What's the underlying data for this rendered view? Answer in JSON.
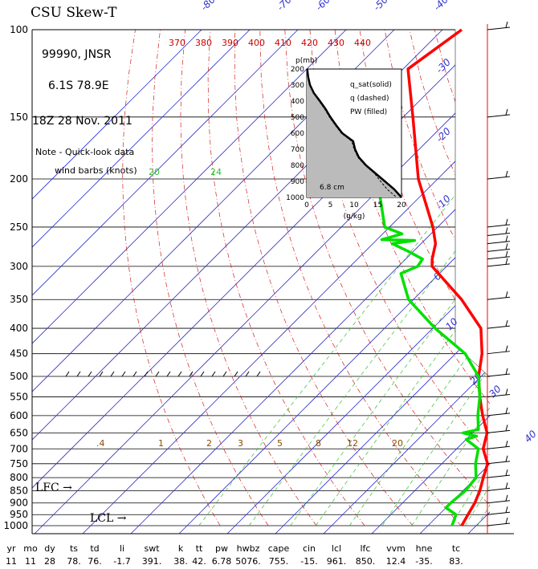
{
  "header": {
    "title": "CSU Skew-T",
    "station": "99990, JNSR",
    "location": "6.1S  78.9E",
    "datetime": "18Z 28 Nov. 2011",
    "note_line1": "Note - Quick-look data",
    "note_line2": "wind barbs (knots)"
  },
  "markers": {
    "lfc": "LFC →",
    "lcl": "LCL →"
  },
  "colors": {
    "temperature": "#ff0000",
    "dewpoint": "#00e000",
    "isotherm": "#3030d0",
    "dry_adiabat": "#d02020",
    "mixing_ratio": "#30c030",
    "inset_fill": "#bbbbbb"
  },
  "chart_data": {
    "type": "line",
    "title": "CSU Skew-T",
    "y_axis_ticks": [
      100,
      150,
      200,
      250,
      300,
      350,
      400,
      450,
      500,
      550,
      600,
      650,
      700,
      750,
      800,
      850,
      900,
      950,
      1000
    ],
    "isotherm_labels": [
      "-80",
      "-70",
      "-60",
      "-50",
      "-40",
      "-30",
      "-20",
      "-10",
      "0",
      "10",
      "20",
      "30",
      "40"
    ],
    "dry_adiabat_labels": [
      "370",
      "380",
      "390",
      "400",
      "410",
      "420",
      "430",
      "440"
    ],
    "mixing_ratio_labels": [
      ".4",
      "1",
      "2",
      "3",
      "5",
      "8",
      "12",
      "20"
    ],
    "mixing_ratio_labels_upper": [
      "20",
      "24"
    ],
    "series": [
      {
        "key": "temperature",
        "pressure": [
          100,
          120,
          150,
          200,
          250,
          270,
          290,
          300,
          350,
          400,
          450,
          500,
          550,
          600,
          650,
          700,
          750,
          800,
          850,
          900,
          950,
          1000
        ],
        "temp": [
          -76,
          -79,
          -68,
          -54,
          -41,
          -37,
          -34.5,
          -33,
          -20,
          -10,
          -4.5,
          -0.5,
          4,
          8.5,
          13,
          15.5,
          19.5,
          21.5,
          23.5,
          25,
          26,
          27
        ]
      },
      {
        "key": "dewpoint",
        "pressure": [
          200,
          210,
          250,
          258,
          265,
          266,
          270,
          280,
          290,
          300,
          310,
          350,
          400,
          450,
          500,
          550,
          600,
          640,
          650,
          660,
          670,
          700,
          750,
          800,
          850,
          900,
          920,
          950,
          1000
        ],
        "temp": [
          -62,
          -60,
          -51,
          -46,
          -49,
          -42,
          -46,
          -41,
          -36.5,
          -36,
          -38,
          -31,
          -19.5,
          -8,
          -0.5,
          4,
          7.5,
          10.5,
          8,
          11.5,
          10,
          14.5,
          17,
          20,
          20.5,
          20,
          20,
          23.5,
          25
        ]
      }
    ],
    "inset": {
      "type": "area",
      "title_lines": [
        "q_sat(solid)",
        "q (dashed)",
        "PW (filled)"
      ],
      "ylabel": "p(mb)",
      "xlabel": "(g/kg)",
      "yticks": [
        200,
        300,
        400,
        500,
        600,
        700,
        800,
        900,
        1000
      ],
      "xticks": [
        0,
        5,
        10,
        15,
        20
      ],
      "pw_label": "6.8 cm",
      "pressure": [
        200,
        250,
        300,
        350,
        400,
        450,
        500,
        550,
        600,
        650,
        700,
        750,
        800,
        850,
        900,
        950,
        1000
      ],
      "q_sat": [
        0.1,
        0.3,
        0.7,
        1.5,
        2.8,
        4.0,
        5.0,
        6.2,
        7.5,
        9.8,
        10.2,
        11.0,
        12.5,
        14.5,
        16.5,
        18.5,
        20.0
      ],
      "q": [
        0.1,
        0.3,
        0.7,
        1.4,
        2.6,
        3.8,
        4.8,
        6.0,
        7.3,
        9.5,
        10.0,
        10.8,
        12.3,
        14.3,
        15.6,
        17.0,
        19.0
      ]
    },
    "wind_barb_levels": [
      100,
      150,
      200,
      250,
      260,
      270,
      280,
      290,
      300,
      350,
      400,
      450,
      500,
      550,
      600,
      650,
      700,
      750,
      800,
      850,
      900,
      950,
      1000
    ]
  },
  "stats": {
    "labels": [
      "yr",
      "mo",
      "dy",
      "ts",
      "td",
      "li",
      "swt",
      "k",
      "tt",
      "pw",
      "hwbz",
      "cape",
      "cin",
      "lcl",
      "lfc",
      "vvm",
      "hne",
      "tc"
    ],
    "values": [
      "11",
      "11",
      "28",
      "78.",
      "76.",
      "-1.7",
      "391.",
      "38.",
      "42.",
      "6.78",
      "5076.",
      "755.",
      "-15.",
      "961.",
      "850.",
      "12.4",
      "-35.",
      "83."
    ]
  }
}
